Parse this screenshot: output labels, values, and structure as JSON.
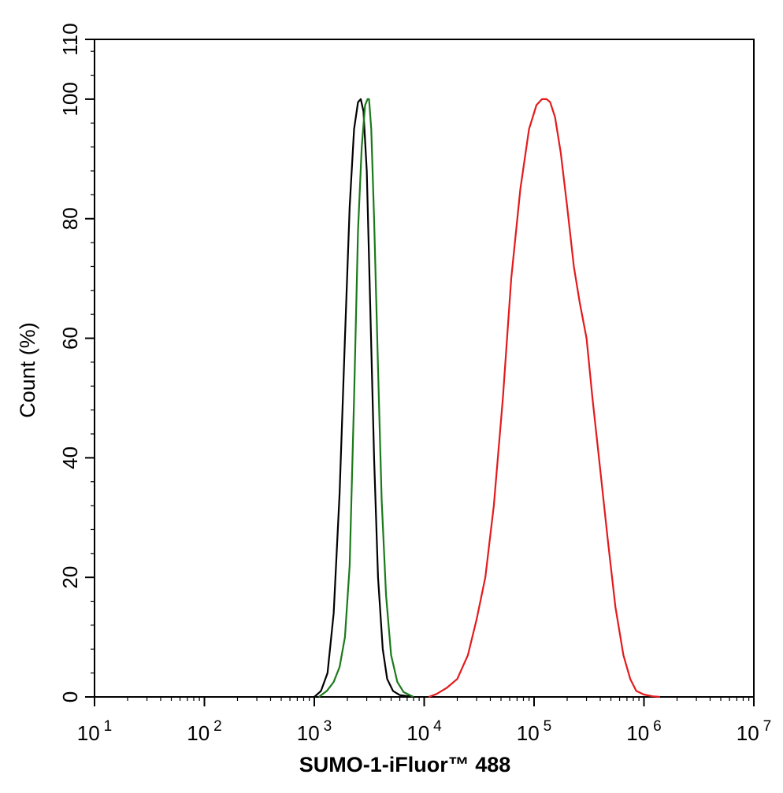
{
  "chart_data": {
    "type": "line",
    "title": "",
    "xlabel": "SUMO-1-iFluor™ 488",
    "ylabel": "Count  (%)",
    "x_scale": "log",
    "xlim": [
      10,
      10000000
    ],
    "ylim": [
      0,
      110
    ],
    "x_ticks": [
      {
        "base": "10",
        "exp": "1",
        "value": 10
      },
      {
        "base": "10",
        "exp": "2",
        "value": 100
      },
      {
        "base": "10",
        "exp": "3",
        "value": 1000
      },
      {
        "base": "10",
        "exp": "4",
        "value": 10000
      },
      {
        "base": "10",
        "exp": "5",
        "value": 100000
      },
      {
        "base": "10",
        "exp": "6",
        "value": 1000000
      },
      {
        "base": "10",
        "exp": "7",
        "value": 10000000
      }
    ],
    "y_ticks": [
      "0",
      "20",
      "40",
      "60",
      "80",
      "100",
      "110"
    ],
    "y_tick_values": [
      0,
      20,
      40,
      60,
      80,
      100,
      110
    ],
    "grid": false,
    "legend": "none",
    "series": [
      {
        "color": "#000000",
        "x": [
          1000,
          1150,
          1320,
          1500,
          1700,
          1900,
          2100,
          2300,
          2500,
          2650,
          2800,
          3000,
          3200,
          3500,
          3800,
          4200,
          4600,
          5200,
          6000,
          8000
        ],
        "y": [
          0,
          1,
          4,
          14,
          34,
          60,
          82,
          95,
          99.5,
          100,
          98,
          88,
          68,
          40,
          20,
          8,
          3,
          1,
          0.3,
          0
        ]
      },
      {
        "color": "#1a7a1a",
        "x": [
          1100,
          1300,
          1500,
          1700,
          1900,
          2100,
          2300,
          2500,
          2700,
          2900,
          3050,
          3150,
          3300,
          3500,
          3800,
          4100,
          4500,
          5000,
          5700,
          6500,
          8000
        ],
        "y": [
          0,
          1,
          2.5,
          5,
          10,
          22,
          50,
          78,
          92,
          99,
          100,
          100,
          95,
          80,
          55,
          33,
          17,
          7,
          2.5,
          0.8,
          0
        ]
      },
      {
        "color": "#e31a1c",
        "x": [
          11000,
          13000,
          16000,
          20000,
          25000,
          30000,
          36000,
          43000,
          52000,
          62000,
          75000,
          90000,
          105000,
          118000,
          130000,
          140000,
          155000,
          175000,
          200000,
          230000,
          260000,
          300000,
          340000,
          400000,
          470000,
          550000,
          650000,
          750000,
          850000,
          1000000,
          1200000,
          1400000
        ],
        "y": [
          0,
          0.5,
          1.5,
          3,
          7,
          13,
          20,
          32,
          50,
          70,
          85,
          95,
          99,
          100,
          100,
          99.5,
          97,
          91,
          82,
          72,
          66,
          60,
          50,
          38,
          26,
          15,
          7,
          3,
          1,
          0.4,
          0.1,
          0
        ]
      }
    ]
  }
}
